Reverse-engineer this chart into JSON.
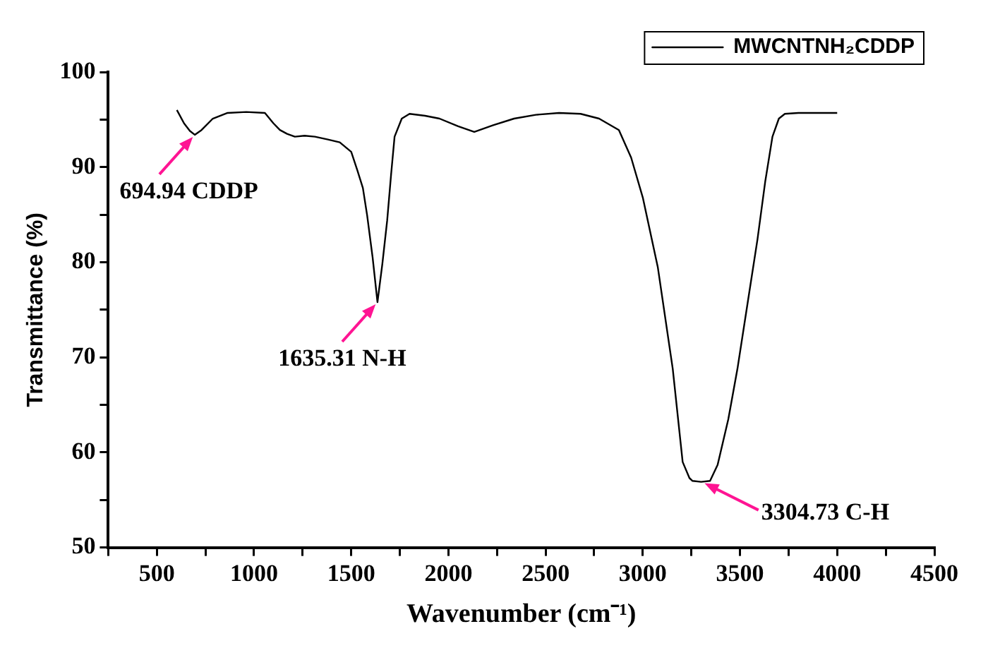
{
  "chart_data": {
    "type": "line",
    "xlabel": "Wavenumber (cm⁻¹)",
    "ylabel": "Transmittance (%)",
    "xlim": [
      250,
      4500
    ],
    "ylim": [
      50,
      100
    ],
    "xticks": [
      {
        "value": 250,
        "label": null
      },
      500,
      {
        "value": 750,
        "label": null
      },
      1000,
      {
        "value": 1250,
        "label": null
      },
      1500,
      {
        "value": 1750,
        "label": null
      },
      2000,
      {
        "value": 2250,
        "label": null
      },
      2500,
      {
        "value": 2750,
        "label": null
      },
      3000,
      {
        "value": 3250,
        "label": null
      },
      3500,
      {
        "value": 3750,
        "label": null
      },
      4000,
      {
        "value": 4250,
        "label": null
      },
      4500
    ],
    "yticks": [
      50,
      {
        "value": 55,
        "label": null
      },
      60,
      {
        "value": 65,
        "label": null
      },
      70,
      {
        "value": 75,
        "label": null
      },
      80,
      {
        "value": 85,
        "label": null
      },
      90,
      {
        "value": 95,
        "label": null
      },
      100
    ],
    "legend": "top right",
    "marker": "none",
    "line_style": "solid",
    "series": [
      {
        "name": "MWCNTNH₂CDDP",
        "color": "#000000",
        "x": [
          603,
          640,
          670,
          695,
          730,
          788,
          864,
          960,
          1056,
          1100,
          1133,
          1170,
          1210,
          1260,
          1313,
          1380,
          1441,
          1500,
          1531,
          1560,
          1582,
          1610,
          1635,
          1660,
          1685,
          1705,
          1723,
          1760,
          1800,
          1880,
          1954,
          2050,
          2133,
          2230,
          2338,
          2450,
          2569,
          2680,
          2775,
          2877,
          2940,
          3000,
          3077,
          3154,
          3205,
          3240,
          3256,
          3300,
          3346,
          3385,
          3440,
          3487,
          3540,
          3590,
          3630,
          3667,
          3700,
          3731,
          3800,
          3900,
          4000
        ],
        "values": [
          96.0,
          94.6,
          93.8,
          93.4,
          93.9,
          95.1,
          95.7,
          95.8,
          95.7,
          94.6,
          93.9,
          93.5,
          93.2,
          93.3,
          93.2,
          92.9,
          92.6,
          91.6,
          89.7,
          87.8,
          84.9,
          80.5,
          75.8,
          79.8,
          84.4,
          89.2,
          93.2,
          95.1,
          95.6,
          95.4,
          95.1,
          94.3,
          93.7,
          94.4,
          95.1,
          95.5,
          95.7,
          95.6,
          95.1,
          93.9,
          91.0,
          86.8,
          79.5,
          68.8,
          59.0,
          57.3,
          57.0,
          56.9,
          57.0,
          58.7,
          63.5,
          68.8,
          75.8,
          82.4,
          88.5,
          93.2,
          95.1,
          95.6,
          95.7,
          95.7,
          95.7
        ]
      }
    ],
    "annotations": [
      {
        "text": "694.94 CDDP",
        "x": 694.94,
        "y": 93.4
      },
      {
        "text": "1635.31 N-H",
        "x": 1635.31,
        "y": 75.8
      },
      {
        "text": "3304.73 C-H",
        "x": 3304.73,
        "y": 56.9
      }
    ]
  }
}
